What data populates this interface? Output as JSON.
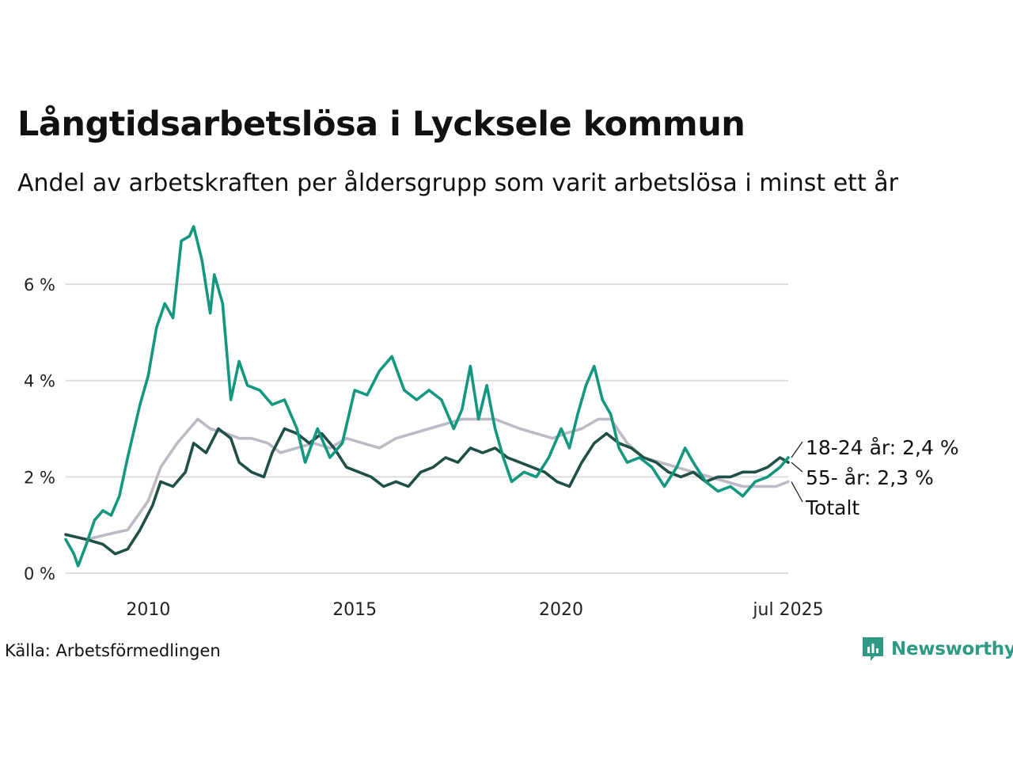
{
  "title": "Långtidsarbetslösa i Lycksele kommun",
  "subtitle": "Andel av arbetskraften per åldersgrupp som varit arbetslösa i minst ett år",
  "source": "Källa: Arbetsförmedlingen",
  "logo_text": "Newsworthy",
  "colors": {
    "youth": "#14977f",
    "older": "#1f4f47",
    "total": "#bdbac6",
    "grid": "#dddddd",
    "logo": "#2e9a86"
  },
  "chart_data": {
    "type": "line",
    "title": "Långtidsarbetslösa i Lycksele kommun",
    "subtitle": "Andel av arbetskraften per åldersgrupp som varit arbetslösa i minst ett år",
    "xlim": [
      2008.0,
      2025.5
    ],
    "ylim": [
      0,
      7.3
    ],
    "y_ticks": [
      {
        "value": 0,
        "label": "0 %"
      },
      {
        "value": 2,
        "label": "2 %"
      },
      {
        "value": 4,
        "label": "4 %"
      },
      {
        "value": 6,
        "label": "6 %"
      }
    ],
    "x_ticks": [
      {
        "value": 2010.0,
        "label": "2010"
      },
      {
        "value": 2015.0,
        "label": "2015"
      },
      {
        "value": 2020.0,
        "label": "2020"
      },
      {
        "value": 2025.5,
        "label": "jul 2025"
      }
    ],
    "grid": true,
    "series": [
      {
        "name": "Totalt",
        "end_label": "Totalt",
        "color_key": "total",
        "points": [
          [
            2008.0,
            0.8
          ],
          [
            2008.5,
            0.7
          ],
          [
            2009.0,
            0.8
          ],
          [
            2009.5,
            0.9
          ],
          [
            2010.0,
            1.5
          ],
          [
            2010.3,
            2.2
          ],
          [
            2010.7,
            2.7
          ],
          [
            2011.0,
            3.0
          ],
          [
            2011.2,
            3.2
          ],
          [
            2011.5,
            3.0
          ],
          [
            2011.9,
            2.9
          ],
          [
            2012.2,
            2.8
          ],
          [
            2012.5,
            2.8
          ],
          [
            2012.9,
            2.7
          ],
          [
            2013.2,
            2.5
          ],
          [
            2013.6,
            2.6
          ],
          [
            2014.0,
            2.7
          ],
          [
            2014.4,
            2.6
          ],
          [
            2014.8,
            2.8
          ],
          [
            2015.2,
            2.7
          ],
          [
            2015.6,
            2.6
          ],
          [
            2016.0,
            2.8
          ],
          [
            2016.4,
            2.9
          ],
          [
            2016.8,
            3.0
          ],
          [
            2017.2,
            3.1
          ],
          [
            2017.6,
            3.2
          ],
          [
            2018.0,
            3.2
          ],
          [
            2018.4,
            3.2
          ],
          [
            2018.7,
            3.1
          ],
          [
            2019.0,
            3.0
          ],
          [
            2019.4,
            2.9
          ],
          [
            2019.8,
            2.8
          ],
          [
            2020.1,
            2.9
          ],
          [
            2020.5,
            3.0
          ],
          [
            2020.9,
            3.2
          ],
          [
            2021.2,
            3.2
          ],
          [
            2021.6,
            2.7
          ],
          [
            2022.0,
            2.4
          ],
          [
            2022.4,
            2.3
          ],
          [
            2022.8,
            2.2
          ],
          [
            2023.2,
            2.1
          ],
          [
            2023.6,
            2.0
          ],
          [
            2024.0,
            1.9
          ],
          [
            2024.4,
            1.8
          ],
          [
            2024.8,
            1.8
          ],
          [
            2025.2,
            1.8
          ],
          [
            2025.5,
            1.9
          ]
        ]
      },
      {
        "name": "55- år",
        "end_label": "55- år: 2,3 %",
        "color_key": "older",
        "points": [
          [
            2008.0,
            0.8
          ],
          [
            2008.5,
            0.7
          ],
          [
            2008.9,
            0.6
          ],
          [
            2009.2,
            0.4
          ],
          [
            2009.5,
            0.5
          ],
          [
            2009.8,
            0.9
          ],
          [
            2010.1,
            1.4
          ],
          [
            2010.3,
            1.9
          ],
          [
            2010.6,
            1.8
          ],
          [
            2010.9,
            2.1
          ],
          [
            2011.1,
            2.7
          ],
          [
            2011.4,
            2.5
          ],
          [
            2011.7,
            3.0
          ],
          [
            2012.0,
            2.8
          ],
          [
            2012.2,
            2.3
          ],
          [
            2012.5,
            2.1
          ],
          [
            2012.8,
            2.0
          ],
          [
            2013.0,
            2.5
          ],
          [
            2013.3,
            3.0
          ],
          [
            2013.6,
            2.9
          ],
          [
            2013.9,
            2.7
          ],
          [
            2014.2,
            2.9
          ],
          [
            2014.5,
            2.6
          ],
          [
            2014.8,
            2.2
          ],
          [
            2015.1,
            2.1
          ],
          [
            2015.4,
            2.0
          ],
          [
            2015.7,
            1.8
          ],
          [
            2016.0,
            1.9
          ],
          [
            2016.3,
            1.8
          ],
          [
            2016.6,
            2.1
          ],
          [
            2016.9,
            2.2
          ],
          [
            2017.2,
            2.4
          ],
          [
            2017.5,
            2.3
          ],
          [
            2017.8,
            2.6
          ],
          [
            2018.1,
            2.5
          ],
          [
            2018.4,
            2.6
          ],
          [
            2018.7,
            2.4
          ],
          [
            2019.0,
            2.3
          ],
          [
            2019.3,
            2.2
          ],
          [
            2019.6,
            2.1
          ],
          [
            2019.9,
            1.9
          ],
          [
            2020.2,
            1.8
          ],
          [
            2020.5,
            2.3
          ],
          [
            2020.8,
            2.7
          ],
          [
            2021.1,
            2.9
          ],
          [
            2021.4,
            2.7
          ],
          [
            2021.7,
            2.6
          ],
          [
            2022.0,
            2.4
          ],
          [
            2022.3,
            2.3
          ],
          [
            2022.6,
            2.1
          ],
          [
            2022.9,
            2.0
          ],
          [
            2023.2,
            2.1
          ],
          [
            2023.5,
            1.9
          ],
          [
            2023.8,
            2.0
          ],
          [
            2024.1,
            2.0
          ],
          [
            2024.4,
            2.1
          ],
          [
            2024.7,
            2.1
          ],
          [
            2025.0,
            2.2
          ],
          [
            2025.3,
            2.4
          ],
          [
            2025.5,
            2.3
          ]
        ]
      },
      {
        "name": "18-24 år",
        "end_label": "18-24 år: 2,4 %",
        "color_key": "youth",
        "points": [
          [
            2008.0,
            0.7
          ],
          [
            2008.2,
            0.4
          ],
          [
            2008.3,
            0.15
          ],
          [
            2008.5,
            0.6
          ],
          [
            2008.7,
            1.1
          ],
          [
            2008.9,
            1.3
          ],
          [
            2009.1,
            1.2
          ],
          [
            2009.3,
            1.6
          ],
          [
            2009.5,
            2.4
          ],
          [
            2009.8,
            3.5
          ],
          [
            2010.0,
            4.1
          ],
          [
            2010.2,
            5.1
          ],
          [
            2010.4,
            5.6
          ],
          [
            2010.6,
            5.3
          ],
          [
            2010.8,
            6.9
          ],
          [
            2011.0,
            7.0
          ],
          [
            2011.1,
            7.2
          ],
          [
            2011.3,
            6.5
          ],
          [
            2011.5,
            5.4
          ],
          [
            2011.6,
            6.2
          ],
          [
            2011.8,
            5.6
          ],
          [
            2012.0,
            3.6
          ],
          [
            2012.2,
            4.4
          ],
          [
            2012.4,
            3.9
          ],
          [
            2012.7,
            3.8
          ],
          [
            2013.0,
            3.5
          ],
          [
            2013.3,
            3.6
          ],
          [
            2013.6,
            3.0
          ],
          [
            2013.8,
            2.3
          ],
          [
            2014.1,
            3.0
          ],
          [
            2014.4,
            2.4
          ],
          [
            2014.7,
            2.7
          ],
          [
            2015.0,
            3.8
          ],
          [
            2015.3,
            3.7
          ],
          [
            2015.6,
            4.2
          ],
          [
            2015.9,
            4.5
          ],
          [
            2016.2,
            3.8
          ],
          [
            2016.5,
            3.6
          ],
          [
            2016.8,
            3.8
          ],
          [
            2017.1,
            3.6
          ],
          [
            2017.4,
            3.0
          ],
          [
            2017.6,
            3.4
          ],
          [
            2017.8,
            4.3
          ],
          [
            2018.0,
            3.2
          ],
          [
            2018.2,
            3.9
          ],
          [
            2018.4,
            3.0
          ],
          [
            2018.6,
            2.4
          ],
          [
            2018.8,
            1.9
          ],
          [
            2019.1,
            2.1
          ],
          [
            2019.4,
            2.0
          ],
          [
            2019.7,
            2.4
          ],
          [
            2020.0,
            3.0
          ],
          [
            2020.2,
            2.6
          ],
          [
            2020.4,
            3.3
          ],
          [
            2020.6,
            3.9
          ],
          [
            2020.8,
            4.3
          ],
          [
            2021.0,
            3.6
          ],
          [
            2021.2,
            3.3
          ],
          [
            2021.4,
            2.6
          ],
          [
            2021.6,
            2.3
          ],
          [
            2021.9,
            2.4
          ],
          [
            2022.2,
            2.2
          ],
          [
            2022.5,
            1.8
          ],
          [
            2022.8,
            2.2
          ],
          [
            2023.0,
            2.6
          ],
          [
            2023.2,
            2.3
          ],
          [
            2023.5,
            1.9
          ],
          [
            2023.8,
            1.7
          ],
          [
            2024.1,
            1.8
          ],
          [
            2024.4,
            1.6
          ],
          [
            2024.7,
            1.9
          ],
          [
            2025.0,
            2.0
          ],
          [
            2025.3,
            2.2
          ],
          [
            2025.5,
            2.4
          ]
        ]
      }
    ]
  }
}
